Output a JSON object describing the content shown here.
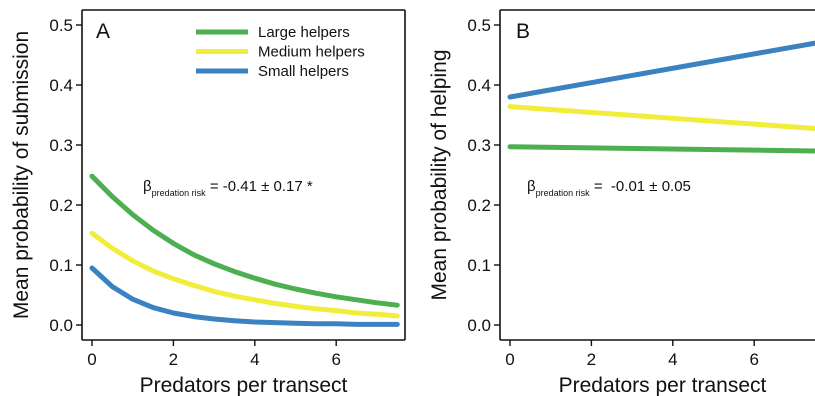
{
  "colors": {
    "large": "#4caf50",
    "medium": "#f2ec3a",
    "small": "#3a82c0",
    "axis": "#111111"
  },
  "chart_data": [
    {
      "panel": "A",
      "type": "line",
      "xlabel": "Predators per transect",
      "ylabel": "Mean probability of submission",
      "xlim": [
        0,
        7.6
      ],
      "ylim": [
        0,
        0.52
      ],
      "xticks": [
        0,
        2,
        4,
        6
      ],
      "xtick_labels": [
        "0",
        "2",
        "4",
        "6"
      ],
      "yticks": [
        0,
        0.1,
        0.2,
        0.3,
        0.4,
        0.5
      ],
      "ytick_labels": [
        "0.0",
        "0.1",
        "0.2",
        "0.3",
        "0.4",
        "0.5"
      ],
      "grid": false,
      "legend": {
        "placement": "top-right",
        "entries": [
          "Large helpers",
          "Medium helpers",
          "Small helpers"
        ]
      },
      "annotation": {
        "symbol": "β",
        "subscript": "predation risk",
        "text": " = -0.41 ± 0.17 *"
      },
      "series": [
        {
          "name": "Large helpers",
          "color_key": "large",
          "x": [
            0,
            0.5,
            1,
            1.5,
            2,
            2.5,
            3,
            3.5,
            4,
            4.5,
            5,
            5.5,
            6,
            6.5,
            7,
            7.5
          ],
          "y": [
            0.248,
            0.214,
            0.184,
            0.158,
            0.136,
            0.117,
            0.102,
            0.089,
            0.078,
            0.068,
            0.06,
            0.053,
            0.047,
            0.042,
            0.037,
            0.033
          ]
        },
        {
          "name": "Medium helpers",
          "color_key": "medium",
          "x": [
            0,
            0.5,
            1,
            1.5,
            2,
            2.5,
            3,
            3.5,
            4,
            4.5,
            5,
            5.5,
            6,
            6.5,
            7,
            7.5
          ],
          "y": [
            0.153,
            0.128,
            0.107,
            0.09,
            0.077,
            0.066,
            0.056,
            0.048,
            0.042,
            0.036,
            0.031,
            0.027,
            0.024,
            0.02,
            0.018,
            0.015
          ]
        },
        {
          "name": "Small helpers",
          "color_key": "small",
          "x": [
            0,
            0.5,
            1,
            1.5,
            2,
            2.5,
            3,
            3.5,
            4,
            4.5,
            5,
            5.5,
            6,
            6.5,
            7,
            7.5
          ],
          "y": [
            0.095,
            0.064,
            0.043,
            0.029,
            0.02,
            0.014,
            0.01,
            0.007,
            0.005,
            0.004,
            0.003,
            0.002,
            0.002,
            0.001,
            0.001,
            0.001
          ]
        }
      ]
    },
    {
      "panel": "B",
      "type": "line",
      "xlabel": "Predators per transect",
      "ylabel": "Mean probability of helping",
      "xlim": [
        0,
        7.6
      ],
      "ylim": [
        0,
        0.52
      ],
      "xticks": [
        0,
        2,
        4,
        6
      ],
      "xtick_labels": [
        "0",
        "2",
        "4",
        "6"
      ],
      "yticks": [
        0,
        0.1,
        0.2,
        0.3,
        0.4,
        0.5
      ],
      "ytick_labels": [
        "0.0",
        "0.1",
        "0.2",
        "0.3",
        "0.4",
        "0.5"
      ],
      "grid": false,
      "annotation": {
        "symbol": "β",
        "subscript": "predation risk",
        "text": " =  -0.01 ± 0.05"
      },
      "series": [
        {
          "name": "Large helpers",
          "color_key": "large",
          "x": [
            0,
            7.6
          ],
          "y": [
            0.297,
            0.29
          ]
        },
        {
          "name": "Medium helpers",
          "color_key": "medium",
          "x": [
            0,
            7.6
          ],
          "y": [
            0.364,
            0.327
          ]
        },
        {
          "name": "Small helpers",
          "color_key": "small",
          "x": [
            0,
            7.6
          ],
          "y": [
            0.38,
            0.471
          ]
        }
      ]
    }
  ]
}
